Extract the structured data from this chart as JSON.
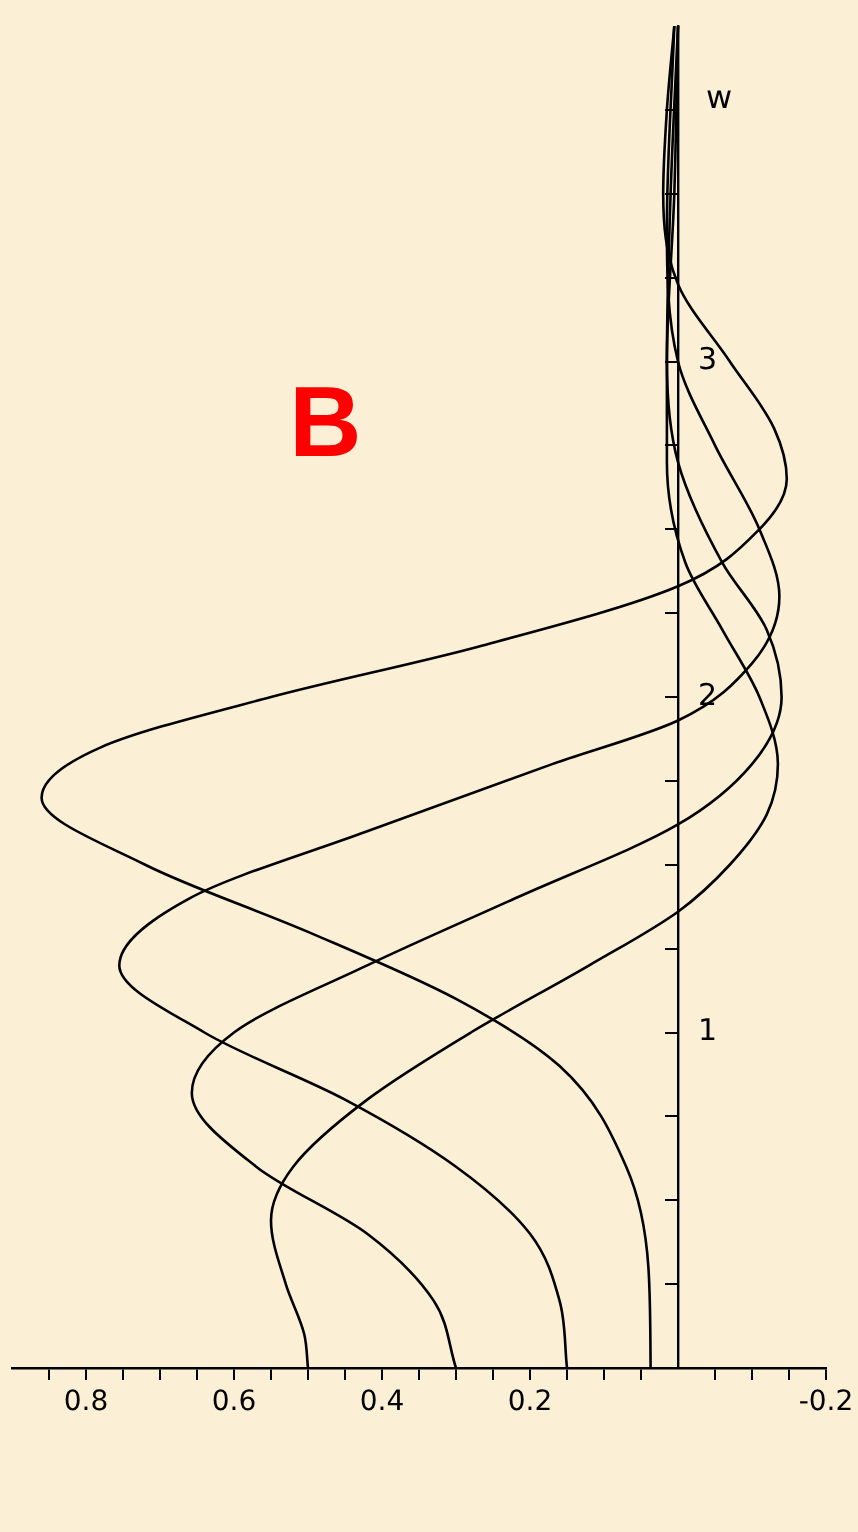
{
  "chart_data": {
    "type": "line",
    "ylabel": "w",
    "marker": "none",
    "annotations": [
      "B"
    ],
    "ylim": [
      0,
      4
    ],
    "xlim": [
      0.9,
      -0.2
    ],
    "yticks": [
      {
        "value": 0.25,
        "label": null
      },
      {
        "value": 0.5,
        "label": null
      },
      {
        "value": 0.75,
        "label": null
      },
      1,
      {
        "value": 1.25,
        "label": null
      },
      {
        "value": 1.5,
        "label": null
      },
      {
        "value": 1.75,
        "label": null
      },
      2,
      {
        "value": 2.25,
        "label": null
      },
      {
        "value": 2.5,
        "label": null
      },
      {
        "value": 2.75,
        "label": null
      },
      3,
      {
        "value": 3.25,
        "label": null
      },
      {
        "value": 3.5,
        "label": null
      },
      {
        "value": 3.75,
        "label": null
      }
    ],
    "xticks": [
      -0.2,
      {
        "value": -0.15,
        "label": null
      },
      {
        "value": -0.1,
        "label": null
      },
      {
        "value": -0.05,
        "label": null
      },
      {
        "value": 0.05,
        "label": null
      },
      {
        "value": 0.1,
        "label": null
      },
      {
        "value": 0.15,
        "label": null
      },
      0.2,
      {
        "value": 0.25,
        "label": null
      },
      {
        "value": 0.3,
        "label": null
      },
      {
        "value": 0.35,
        "label": null
      },
      0.4,
      {
        "value": 0.45,
        "label": null
      },
      {
        "value": 0.5,
        "label": null
      },
      {
        "value": 0.55,
        "label": null
      },
      0.6,
      {
        "value": 0.65,
        "label": null
      },
      {
        "value": 0.7,
        "label": null
      },
      {
        "value": 0.75,
        "label": null
      },
      0.8,
      {
        "value": 0.85,
        "label": null
      }
    ],
    "series": [
      {
        "color": "#000000",
        "values": [
          0,
          0.1,
          0.25,
          0.44,
          0.6,
          0.8,
          1.0,
          1.2,
          1.36,
          1.5,
          1.65,
          1.8,
          2.0,
          2.2,
          2.4,
          2.7,
          3.0,
          3.5,
          4.0
        ],
        "x": [
          0.5,
          0.505,
          0.53,
          0.55,
          0.52,
          0.42,
          0.28,
          0.12,
          0,
          -0.07,
          -0.12,
          -0.135,
          -0.11,
          -0.06,
          -0.01,
          0.015,
          0.015,
          0.005,
          0
        ]
      },
      {
        "color": "#000000",
        "values": [
          0,
          0.2,
          0.4,
          0.6,
          0.82,
          1.0,
          1.2,
          1.4,
          1.62,
          1.8,
          2.0,
          2.2,
          2.4,
          2.7,
          3.0,
          3.5,
          4.0
        ],
        "x": [
          0.3,
          0.33,
          0.42,
          0.57,
          0.657,
          0.6,
          0.42,
          0.22,
          0,
          -0.1,
          -0.14,
          -0.12,
          -0.06,
          0,
          0.015,
          0.01,
          0
        ]
      },
      {
        "color": "#000000",
        "values": [
          0,
          0.2,
          0.4,
          0.6,
          0.8,
          1.0,
          1.2,
          1.4,
          1.6,
          1.8,
          1.93,
          2.1,
          2.3,
          2.5,
          2.75,
          3.0,
          3.4,
          4.0
        ],
        "x": [
          0.15,
          0.16,
          0.2,
          0.3,
          0.45,
          0.64,
          0.755,
          0.66,
          0.42,
          0.17,
          0,
          -0.1,
          -0.137,
          -0.11,
          -0.05,
          0,
          0.015,
          0.005
        ]
      },
      {
        "color": "#000000",
        "values": [
          0,
          0.3,
          0.6,
          0.9,
          1.1,
          1.3,
          1.5,
          1.7,
          1.85,
          2.0,
          2.15,
          2.33,
          2.5,
          2.65,
          2.8,
          3.0,
          3.23,
          3.5,
          3.75,
          4.0
        ],
        "x": [
          0.037,
          0.04,
          0.07,
          0.16,
          0.3,
          0.5,
          0.72,
          0.86,
          0.78,
          0.55,
          0.27,
          0,
          -0.11,
          -0.147,
          -0.13,
          -0.07,
          0,
          0.02,
          0.015,
          0.005
        ]
      }
    ]
  }
}
